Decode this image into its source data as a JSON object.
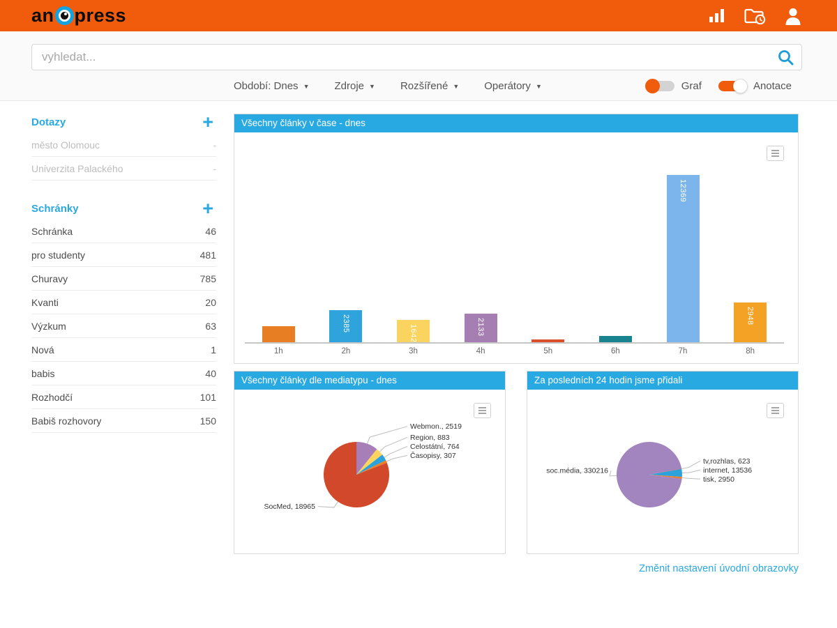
{
  "header": {
    "logo_text_1": "an",
    "logo_text_2": "press"
  },
  "search": {
    "placeholder": "vyhledat..."
  },
  "filterbar": {
    "dropdowns": [
      {
        "label": "Období: Dnes"
      },
      {
        "label": "Zdroje"
      },
      {
        "label": "Rozšířené"
      },
      {
        "label": "Operátory"
      }
    ],
    "toggles": [
      {
        "label": "Graf",
        "on": false
      },
      {
        "label": "Anotace",
        "on": true
      }
    ]
  },
  "sidebar": {
    "sections": [
      {
        "title": "Dotazy",
        "items": [
          {
            "label": "město Olomouc",
            "value": "-",
            "muted": true
          },
          {
            "label": "Univerzita Palackého",
            "value": "-",
            "muted": true
          }
        ]
      },
      {
        "title": "Schránky",
        "items": [
          {
            "label": "Schránka",
            "value": "46"
          },
          {
            "label": "pro studenty",
            "value": "481"
          },
          {
            "label": "Churavy",
            "value": "785"
          },
          {
            "label": "Kvanti",
            "value": "20"
          },
          {
            "label": "Výzkum",
            "value": "63"
          },
          {
            "label": "Nová",
            "value": "1"
          },
          {
            "label": "babis",
            "value": "40"
          },
          {
            "label": "Rozhodčí",
            "value": "101"
          },
          {
            "label": "Babiš rozhovory",
            "value": "150"
          }
        ]
      }
    ]
  },
  "footer": {
    "settings_link": "Změnit nastavení úvodní obrazovky"
  },
  "chart_data": [
    {
      "type": "bar",
      "title": "Všechny články v čase - dnes",
      "categories": [
        "1h",
        "2h",
        "3h",
        "4h",
        "5h",
        "6h",
        "7h",
        "8h"
      ],
      "values": [
        1200,
        2385,
        1642,
        2133,
        210,
        470,
        12369,
        2948
      ],
      "data_labels": [
        "",
        "2385",
        "1642",
        "2133",
        "",
        "",
        "12369",
        "2948"
      ],
      "colors": [
        "#E87E23",
        "#2FA3DC",
        "#FBD45F",
        "#A57FB2",
        "#D94F2B",
        "#1A8390",
        "#7CB5EC",
        "#F4A226"
      ],
      "ylim": [
        0,
        12369
      ],
      "grid": false,
      "legend": "none"
    },
    {
      "type": "pie",
      "title": "Všechny články dle mediatypu - dnes",
      "start_angle": 0,
      "slices": [
        {
          "name": "Webmon.",
          "value": 2519,
          "label": "Webmon., 2519",
          "color": "#A77EB8"
        },
        {
          "name": "Region",
          "value": 883,
          "label": "Region, 883",
          "color": "#FAD45F"
        },
        {
          "name": "Celostátní",
          "value": 764,
          "label": "Celostátní, 764",
          "color": "#2BA2DC"
        },
        {
          "name": "Časopisy",
          "value": 307,
          "label": "Časopisy, 307",
          "color": "#EE7D23"
        },
        {
          "name": "SocMed",
          "value": 18965,
          "label": "SocMed, 18965",
          "color": "#D1492A"
        }
      ]
    },
    {
      "type": "pie",
      "title": "Za posledních 24 hodin jsme přidali",
      "start_angle": 97,
      "slices": [
        {
          "name": "soc.média",
          "value": 330216,
          "label": "soc.média, 330216",
          "color": "#A284BE"
        },
        {
          "name": "tv,rozhlas",
          "value": 623,
          "label": "tv,rozhlas, 623",
          "color": "#D1492A"
        },
        {
          "name": "internet",
          "value": 13536,
          "label": "internet, 13536",
          "color": "#2BA2DC"
        },
        {
          "name": "tisk",
          "value": 2950,
          "label": "tisk, 2950",
          "color": "#EE7D23"
        }
      ]
    }
  ],
  "colors": {
    "brand_orange": "#F05B0C",
    "accent_blue": "#29A9E1",
    "panel_header_bg": "#29A9E1"
  }
}
